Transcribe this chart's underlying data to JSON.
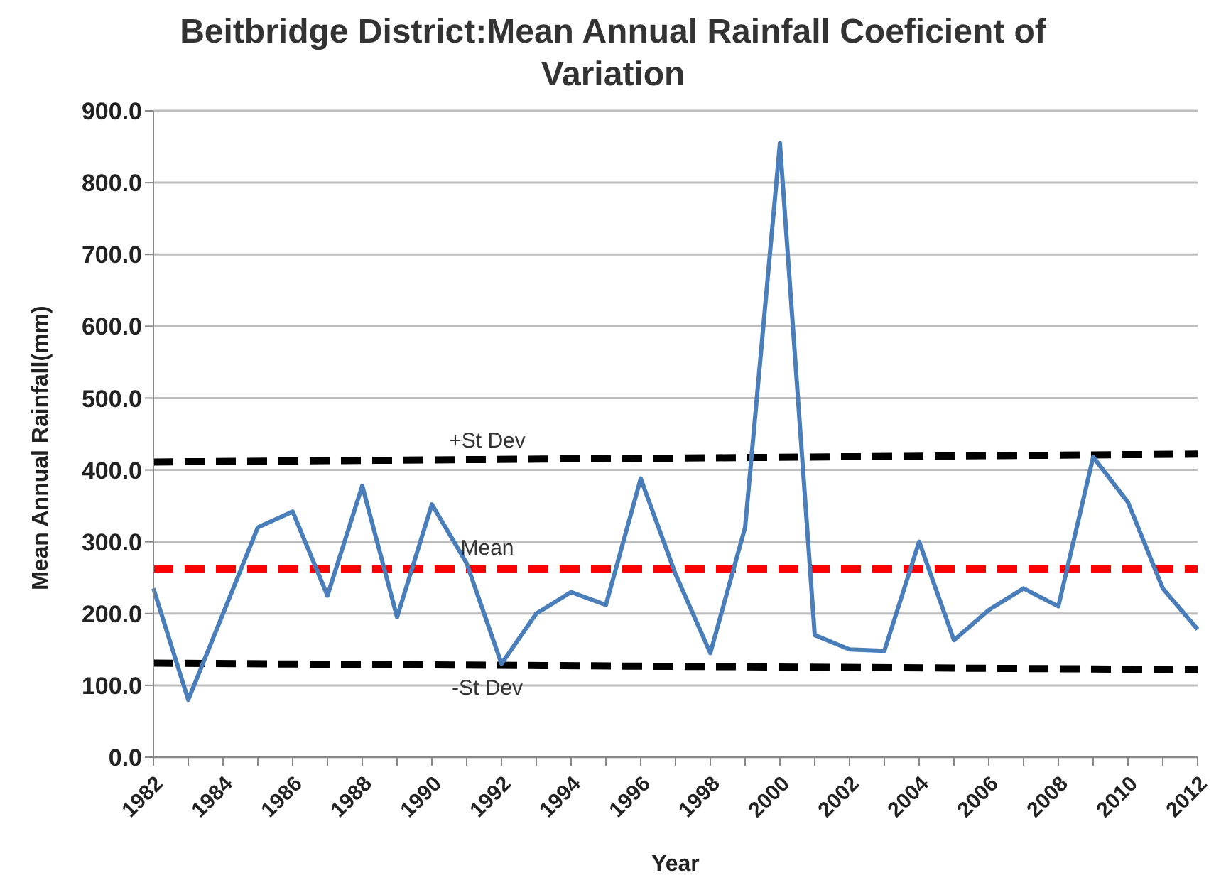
{
  "chart_data": {
    "type": "line",
    "title": "Beitbridge District:Mean Annual Rainfall Coeficient of Variation",
    "xlabel": "Year",
    "ylabel": "Mean Annual Rainfall(mm)",
    "categories": [
      "1982",
      null,
      "1984",
      null,
      "1986",
      null,
      "1988",
      null,
      "1990",
      null,
      "1992",
      null,
      "1994",
      null,
      "1996",
      null,
      "1998",
      null,
      "2000",
      null,
      "2002",
      null,
      "2004",
      null,
      "2006",
      null,
      "2008",
      null,
      "2010",
      null,
      "2012"
    ],
    "series": [
      {
        "name": "+St Dev",
        "color": "#000000",
        "line_style": "dashed",
        "values": [
          411,
          null,
          null,
          null,
          null,
          null,
          null,
          null,
          null,
          null,
          null,
          null,
          null,
          null,
          null,
          null,
          null,
          null,
          null,
          null,
          null,
          null,
          null,
          null,
          null,
          null,
          null,
          null,
          null,
          null,
          422
        ]
      },
      {
        "name": "-St Dev",
        "color": "#000000",
        "line_style": "dashed",
        "values": [
          131,
          null,
          null,
          null,
          null,
          null,
          null,
          null,
          null,
          null,
          null,
          null,
          null,
          null,
          null,
          null,
          null,
          null,
          null,
          null,
          null,
          null,
          null,
          null,
          null,
          null,
          null,
          null,
          null,
          null,
          122
        ]
      },
      {
        "name": "Mean",
        "color": "#ff0000",
        "line_style": "dashed",
        "values": [
          262,
          null,
          null,
          null,
          null,
          null,
          null,
          null,
          null,
          null,
          null,
          null,
          null,
          null,
          null,
          null,
          null,
          null,
          null,
          null,
          null,
          null,
          null,
          null,
          null,
          null,
          null,
          null,
          null,
          null,
          262
        ]
      },
      {
        "color": "#4a7ebb",
        "line_style": "solid",
        "values": [
          235,
          80,
          200,
          320,
          342,
          225,
          378,
          195,
          352,
          270,
          130,
          200,
          230,
          212,
          388,
          255,
          145,
          320,
          855,
          170,
          150,
          148,
          300,
          163,
          205,
          235,
          210,
          418,
          355,
          235,
          178
        ]
      }
    ],
    "ylim": [
      0,
      900
    ],
    "yticks": [
      {
        "value": 0,
        "label": "0.0"
      },
      {
        "value": 100,
        "label": "100.0"
      },
      {
        "value": 200,
        "label": "200.0"
      },
      {
        "value": 300,
        "label": "300.0"
      },
      {
        "value": 400,
        "label": "400.0"
      },
      {
        "value": 500,
        "label": "500.0"
      },
      {
        "value": 600,
        "label": "600.0"
      },
      {
        "value": 700,
        "label": "700.0"
      },
      {
        "value": 800,
        "label": "800.0"
      },
      {
        "value": 900,
        "label": "900.0"
      }
    ],
    "grid": "y",
    "legend": false,
    "marker": "none"
  }
}
